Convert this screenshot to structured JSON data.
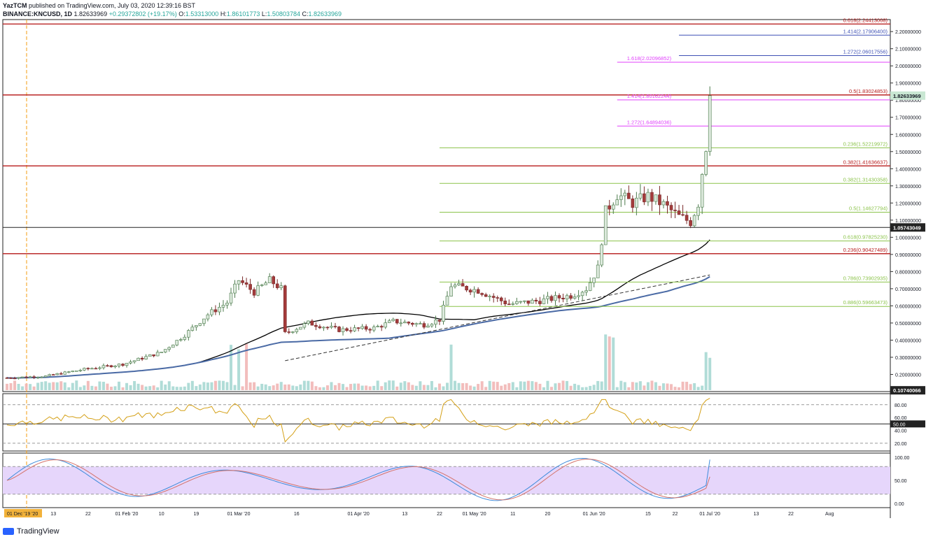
{
  "header": {
    "line1_author": "YazTCM",
    "line1_rest": "published on TradingView.com, July 03, 2020 12:39:16 BST",
    "symbol": "BINANCE:KNCUSD, 1D",
    "last": "1.82633969",
    "change": "+0.29372802 (+19.17%)",
    "o_label": "O:",
    "o": "1.53313000",
    "h_label": "H:",
    "h": "1.86101773",
    "l_label": "L:",
    "l": "1.50803784",
    "c_label": "C:",
    "c": "1.82633969"
  },
  "footer": {
    "brand": "TradingView"
  },
  "colors": {
    "up": "#26a69a",
    "down": "#ef5350",
    "sr_line": "#b71c1c",
    "fib_green": "#8bc34a",
    "fib_ext": "#e040fb",
    "fib_blue": "#3f51b5",
    "ma_black": "#000000",
    "ma_blue": "#4a6aa5",
    "rsi": "#d4a017",
    "stoch_k": "#3d8bdb",
    "stoch_d": "#d4736b",
    "stoch_band": "#e6d6fb"
  },
  "chart_data": {
    "type": "candlestick",
    "pair": "KNCUSD",
    "interval": "1D",
    "yaxis_ticks": [
      "2.20000000",
      "2.10000000",
      "2.00000000",
      "1.90000000",
      "1.80000000",
      "1.70000000",
      "1.60000000",
      "1.50000000",
      "1.40000000",
      "1.30000000",
      "1.20000000",
      "1.10000000",
      "1.00000000",
      "0.90000000",
      "0.80000000",
      "0.70000000",
      "0.60000000",
      "0.50000000",
      "0.40000000",
      "0.30000000",
      "0.20000000"
    ],
    "ylim": [
      0.1,
      2.27
    ],
    "price_labels": [
      {
        "value": 1.82633969,
        "text": "1.82633969",
        "style": "last"
      },
      {
        "value": 1.05743049,
        "text": "1.05743049",
        "style": "line"
      },
      {
        "value": 0.10740066,
        "text": "0.10740066",
        "style": "line"
      }
    ],
    "horizontal_sr": [
      2.24413068,
      1.83024853,
      1.41636637,
      0.90427489
    ],
    "black_line": 1.05743049,
    "fib_levels": [
      {
        "label": "0.618(2.24413068)",
        "value": 2.24413068,
        "color": "#b71c1c",
        "span": "full"
      },
      {
        "label": "1.414(2.17906400)",
        "value": 2.179064,
        "color": "#3f51b5",
        "span": "ext_right"
      },
      {
        "label": "1.272(2.06017556)",
        "value": 2.06017556,
        "color": "#3f51b5",
        "span": "ext_right"
      },
      {
        "label": "1.618(2.02096852)",
        "value": 2.02096852,
        "color": "#e040fb",
        "span": "ext"
      },
      {
        "label": "0.5(1.83024853)",
        "value": 1.83024853,
        "color": "#b71c1c",
        "span": "full"
      },
      {
        "label": "1.414(1.80162244)",
        "value": 1.80162244,
        "color": "#e040fb",
        "span": "ext"
      },
      {
        "label": "1.272(1.64894036)",
        "value": 1.64894036,
        "color": "#e040fb",
        "span": "ext"
      },
      {
        "label": "0.236(1.52219972)",
        "value": 1.52219972,
        "color": "#8bc34a",
        "span": "retr"
      },
      {
        "label": "0.382(1.41636637)",
        "value": 1.41636637,
        "color": "#b71c1c",
        "span": "full"
      },
      {
        "label": "0.382(1.31430358)",
        "value": 1.31430358,
        "color": "#8bc34a",
        "span": "retr"
      },
      {
        "label": "0.5(1.14627794)",
        "value": 1.14627794,
        "color": "#8bc34a",
        "span": "retr"
      },
      {
        "label": "0.618(0.97825230)",
        "value": 0.9782523,
        "color": "#8bc34a",
        "span": "retr"
      },
      {
        "label": "0.236(0.90427489)",
        "value": 0.90427489,
        "color": "#b71c1c",
        "span": "full"
      },
      {
        "label": "0.786(0.73902935)",
        "value": 0.73902935,
        "color": "#8bc34a",
        "span": "retr"
      },
      {
        "label": "0.886(0.59663473)",
        "value": 0.59663473,
        "color": "#8bc34a",
        "span": "retr"
      }
    ],
    "xaxis_labels": [
      "01 Dec '19 '20",
      "13",
      "22",
      "01 Feb '20",
      "10",
      "19",
      "01 Mar '20",
      "16",
      "01 Apr '20",
      "13",
      "22",
      "01 May '20",
      "11",
      "20",
      "01 Jun '20",
      "15",
      "22",
      "01 Jul '20",
      "13",
      "22",
      "Aug"
    ],
    "xaxis_label_days": [
      0,
      12,
      21,
      31,
      40,
      49,
      60,
      75,
      91,
      103,
      112,
      121,
      131,
      140,
      152,
      166,
      173,
      182,
      194,
      203,
      213
    ],
    "days": 183,
    "last_close": 1.82633969,
    "rsi": {
      "ticks": [
        "80.00",
        "60.00",
        "50.00",
        "40.00",
        "20.00"
      ],
      "last": 90
    },
    "stoch": {
      "ticks": [
        "100.00",
        "50.00",
        "0.00"
      ],
      "last": 95
    }
  }
}
